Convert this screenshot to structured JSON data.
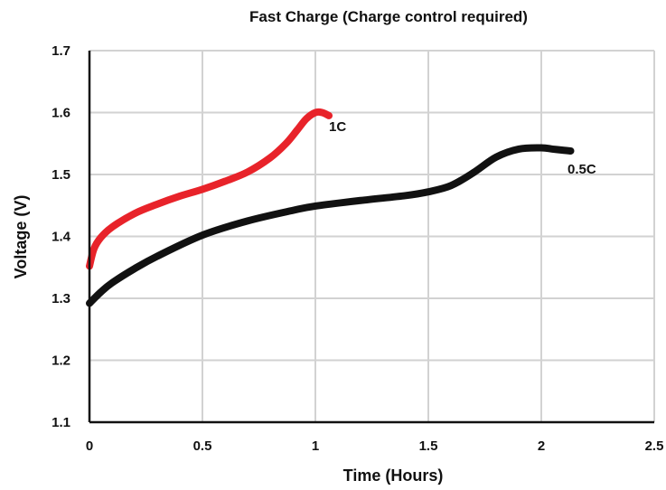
{
  "chart_data": {
    "type": "line",
    "title": "Fast Charge (Charge control required)",
    "xlabel": "Time (Hours)",
    "ylabel": "Voltage (V)",
    "xlim": [
      0,
      2.5
    ],
    "ylim": [
      1.1,
      1.7
    ],
    "xticks": [
      0,
      0.5,
      1,
      1.5,
      2,
      2.5
    ],
    "xtick_labels": [
      "0",
      "0.5",
      "1",
      "1.5",
      "2",
      "2.5"
    ],
    "yticks": [
      1.1,
      1.2,
      1.3,
      1.4,
      1.5,
      1.6,
      1.7
    ],
    "ytick_labels": [
      "1.1",
      "1.2",
      "1.3",
      "1.4",
      "1.5",
      "1.6",
      "1.7"
    ],
    "grid": true,
    "series": [
      {
        "name": "1C",
        "color": "#e8232a",
        "x": [
          0,
          0.02,
          0.05,
          0.1,
          0.2,
          0.3,
          0.4,
          0.5,
          0.6,
          0.7,
          0.8,
          0.87,
          0.92,
          0.96,
          1.0,
          1.03,
          1.06
        ],
        "y": [
          1.352,
          1.38,
          1.398,
          1.415,
          1.437,
          1.452,
          1.465,
          1.476,
          1.489,
          1.504,
          1.527,
          1.55,
          1.572,
          1.59,
          1.6,
          1.6,
          1.595
        ]
      },
      {
        "name": "0.5C",
        "color": "#111111",
        "x": [
          0,
          0.05,
          0.1,
          0.2,
          0.3,
          0.5,
          0.7,
          0.9,
          1.0,
          1.2,
          1.4,
          1.5,
          1.6,
          1.7,
          1.8,
          1.9,
          2.0,
          2.05,
          2.1,
          2.13
        ],
        "y": [
          1.292,
          1.31,
          1.325,
          1.348,
          1.368,
          1.402,
          1.425,
          1.442,
          1.449,
          1.458,
          1.466,
          1.472,
          1.482,
          1.503,
          1.528,
          1.541,
          1.543,
          1.541,
          1.539,
          1.538
        ]
      }
    ]
  }
}
